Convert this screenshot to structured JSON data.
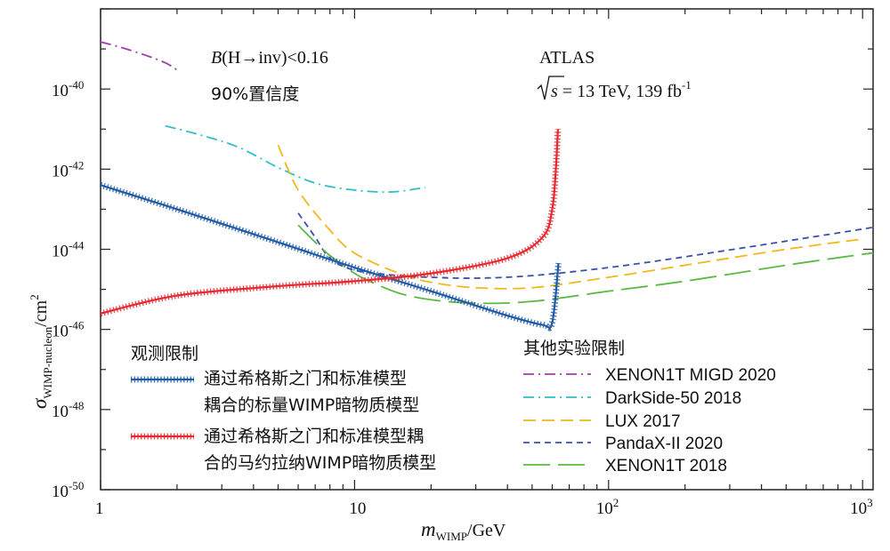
{
  "chart_data": {
    "type": "line",
    "x_scale": "log",
    "y_scale": "log",
    "xlim": [
      1,
      1100
    ],
    "ylim": [
      1e-50,
      1e-38
    ],
    "xlabel": {
      "main": "m",
      "sub": "WIMP",
      "unit": "/GeV"
    },
    "ylabel": {
      "main": "σ",
      "sub": "WIMP-nucleon",
      "unit": "/cm",
      "sup": "2"
    },
    "x_ticks": [
      {
        "value": 1,
        "base": "1",
        "exp": ""
      },
      {
        "value": 10,
        "base": "10",
        "exp": ""
      },
      {
        "value": 100,
        "base": "10",
        "exp": "2"
      },
      {
        "value": 1000,
        "base": "10",
        "exp": "3"
      }
    ],
    "y_ticks": [
      {
        "value": 1e-40,
        "base": "10",
        "exp": "-40"
      },
      {
        "value": 1e-42,
        "base": "10",
        "exp": "-42"
      },
      {
        "value": 1e-44,
        "base": "10",
        "exp": "-44"
      },
      {
        "value": 1e-46,
        "base": "10",
        "exp": "-46"
      },
      {
        "value": 1e-48,
        "base": "10",
        "exp": "-48"
      },
      {
        "value": 1e-50,
        "base": "10",
        "exp": "-50"
      }
    ],
    "annotations": {
      "limit_b": "B",
      "limit_rest": "(H→inv)<0.16",
      "confidence": "90%置信度",
      "experiment": "ATLAS",
      "energy_s": "s",
      "energy_rest": " = 13 TeV, 139 fb",
      "energy_sup": "-1"
    },
    "legend_observed_title": "观测限制",
    "legend_other_title": "其他实验限制",
    "series": [
      {
        "name": "通过希格斯之门和标准模型耦合的标量WIMP暗物质模型",
        "legend_lines": [
          "通过希格斯之门和标准模型",
          "耦合的标量WIMP暗物质模型"
        ],
        "color": "#1f5aa6",
        "style": "hatched",
        "group": "observed",
        "x": [
          1,
          2,
          5,
          10,
          20,
          40,
          55,
          60,
          63.5
        ],
        "y": [
          4e-43,
          1e-43,
          1.5e-44,
          3.5e-45,
          9e-46,
          2.2e-46,
          1.3e-46,
          1.5e-46,
          4.5e-45
        ]
      },
      {
        "name": "通过希格斯之门和标准模型耦合的马约拉纳WIMP暗物质模型",
        "legend_lines": [
          "通过希格斯之门和标准模型耦",
          "合的马约拉纳WIMP暗物质模型"
        ],
        "color": "#e8272e",
        "style": "hatched",
        "group": "observed",
        "x": [
          1,
          2,
          5,
          10,
          20,
          40,
          55,
          60,
          62,
          63.2
        ],
        "y": [
          2.5e-46,
          7e-46,
          1.2e-45,
          1.6e-45,
          2.5e-45,
          6e-45,
          2e-44,
          1e-43,
          1e-42,
          1e-41
        ]
      },
      {
        "name": "XENON1T MIGD 2020",
        "color": "#9b3fa6",
        "style": "dashdot",
        "group": "other",
        "x": [
          1,
          1.2,
          1.5,
          1.8,
          2
        ],
        "y": [
          1.5e-39,
          1.1e-39,
          7e-40,
          4.5e-40,
          3e-40
        ]
      },
      {
        "name": "DarkSide-50 2018",
        "color": "#2fbfc6",
        "style": "dashdot",
        "group": "other",
        "x": [
          1.8,
          2.5,
          3.5,
          5,
          7,
          10,
          14,
          19
        ],
        "y": [
          1.2e-41,
          7e-42,
          3.5e-42,
          1.1e-42,
          4.5e-43,
          3e-43,
          2.7e-43,
          3.5e-43
        ]
      },
      {
        "name": "LUX 2017",
        "color": "#f1b81a",
        "style": "dash",
        "group": "other",
        "x": [
          5,
          6,
          8,
          10,
          15,
          20,
          30,
          50,
          100,
          200,
          500,
          1000
        ],
        "y": [
          4e-42,
          3e-43,
          3e-44,
          8e-45,
          2.5e-45,
          1.5e-45,
          1.1e-45,
          1.1e-45,
          2e-45,
          4e-45,
          1e-44,
          1.8e-44
        ]
      },
      {
        "name": "PandaX-II 2020",
        "color": "#3b4fa8",
        "style": "shortdash",
        "group": "other",
        "x": [
          6,
          7,
          8,
          10,
          15,
          20,
          30,
          50,
          100,
          200,
          500,
          1000,
          1100
        ],
        "y": [
          8e-44,
          2e-44,
          6e-45,
          3e-45,
          2.2e-45,
          2e-45,
          1.9e-45,
          2.2e-45,
          3.5e-45,
          6.5e-45,
          1.6e-44,
          3.2e-44,
          3.6e-44
        ]
      },
      {
        "name": "XENON1T 2018",
        "color": "#5bb944",
        "style": "longdash",
        "group": "other",
        "x": [
          6,
          7,
          8,
          10,
          12,
          15,
          20,
          30,
          50,
          100,
          200,
          500,
          1000,
          1100
        ],
        "y": [
          4e-44,
          1.5e-44,
          7e-45,
          2.5e-45,
          1.4e-45,
          8e-46,
          5.5e-46,
          4.5e-46,
          5e-46,
          9e-46,
          1.6e-45,
          4e-45,
          7.5e-45,
          8e-45
        ]
      }
    ]
  }
}
